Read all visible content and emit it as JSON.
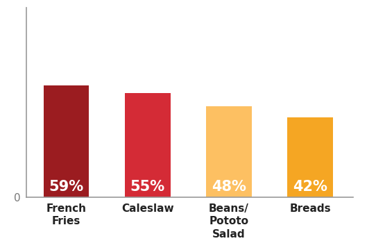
{
  "chart_data": {
    "type": "bar",
    "categories": [
      "French Fries",
      "Caleslaw",
      "Beans/ Pototo Salad",
      "Breads"
    ],
    "values": [
      59,
      55,
      48,
      42
    ],
    "value_labels": [
      "59%",
      "55%",
      "48%",
      "42%"
    ],
    "colors": [
      "#9b1c20",
      "#d42b36",
      "#fdc062",
      "#f5a623"
    ],
    "ylim": [
      0,
      100
    ],
    "yticks": [
      0
    ],
    "data_labels": true,
    "grid": false
  }
}
